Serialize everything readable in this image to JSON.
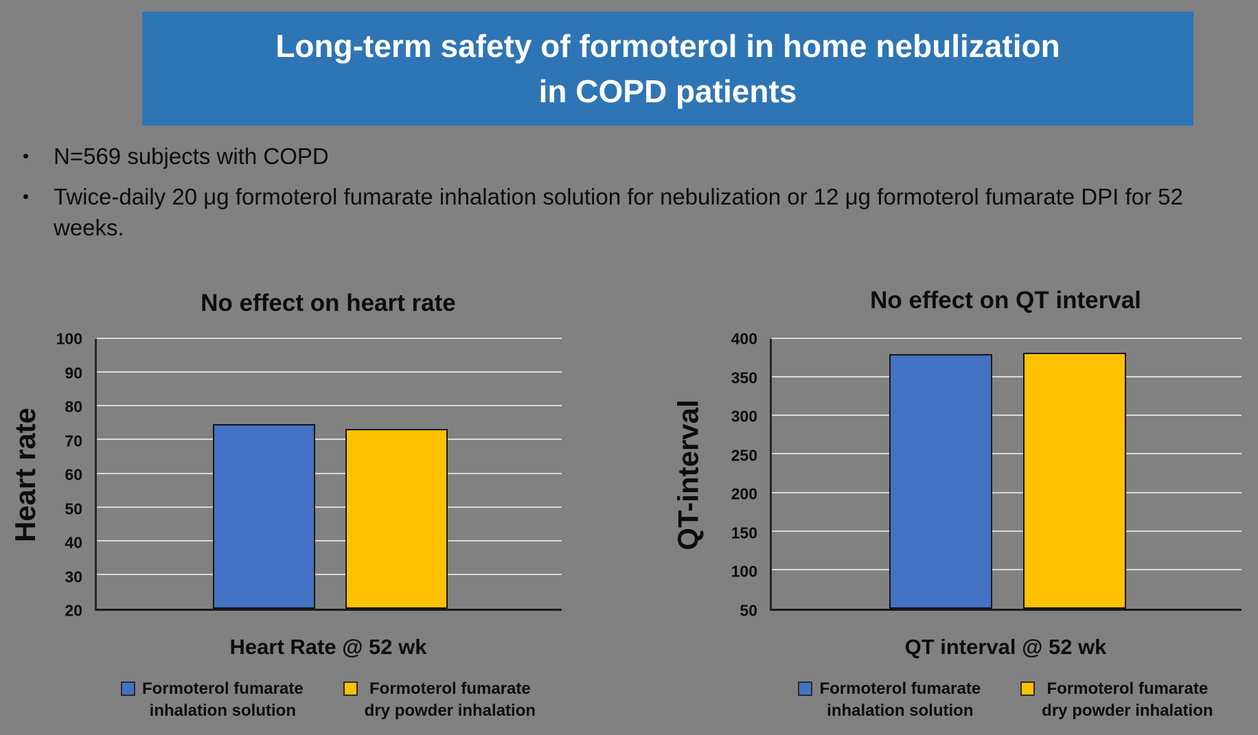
{
  "banner": {
    "title_line1": "Long-term safety of formoterol in home nebulization",
    "title_line2": "in COPD patients",
    "bg_color": "#2E75B6"
  },
  "bullet_marker": "•",
  "bullets": [
    "N=569 subjects with COPD",
    "Twice-daily 20 μg formoterol fumarate inhalation solution for nebulization or 12 μg formoterol fumarate DPI for 52 weeks."
  ],
  "colors": {
    "background": "#818181",
    "banner_blue": "#2E75B6",
    "bar_blue": "#4472C4",
    "bar_yellow": "#FFC000",
    "gridline": "#D9D9D9",
    "axis": "#262626",
    "text": "#0D0D0D",
    "title_text": "#FFFFFF"
  },
  "legend": [
    {
      "label_line1": "Formoterol fumarate",
      "label_line2": "inhalation solution",
      "color": "#4472C4"
    },
    {
      "label_line1": "Formoterol fumarate",
      "label_line2": "dry powder inhalation",
      "color": "#FFC000"
    }
  ],
  "chart_data": [
    {
      "type": "bar",
      "title": "No effect on heart rate",
      "ylabel": "Heart rate",
      "xlabel": "Heart Rate @ 52 wk",
      "categories": [
        "Formoterol fumarate inhalation solution",
        "Formoterol fumarate dry powder inhalation"
      ],
      "values": [
        74.7,
        73.3
      ],
      "ylim": [
        20,
        100
      ],
      "yticks": [
        20,
        30,
        40,
        50,
        60,
        70,
        80,
        90,
        100
      ],
      "grid": true,
      "legend_position": "bottom"
    },
    {
      "type": "bar",
      "title": "No effect on QT interval",
      "ylabel": "QT-interval",
      "xlabel": "QT interval @ 52 wk",
      "categories": [
        "Formoterol fumarate inhalation solution",
        "Formoterol fumarate dry powder inhalation"
      ],
      "values": [
        380,
        382
      ],
      "ylim": [
        50,
        400
      ],
      "yticks": [
        50,
        100,
        150,
        200,
        250,
        300,
        350,
        400
      ],
      "grid": true,
      "legend_position": "bottom"
    }
  ]
}
